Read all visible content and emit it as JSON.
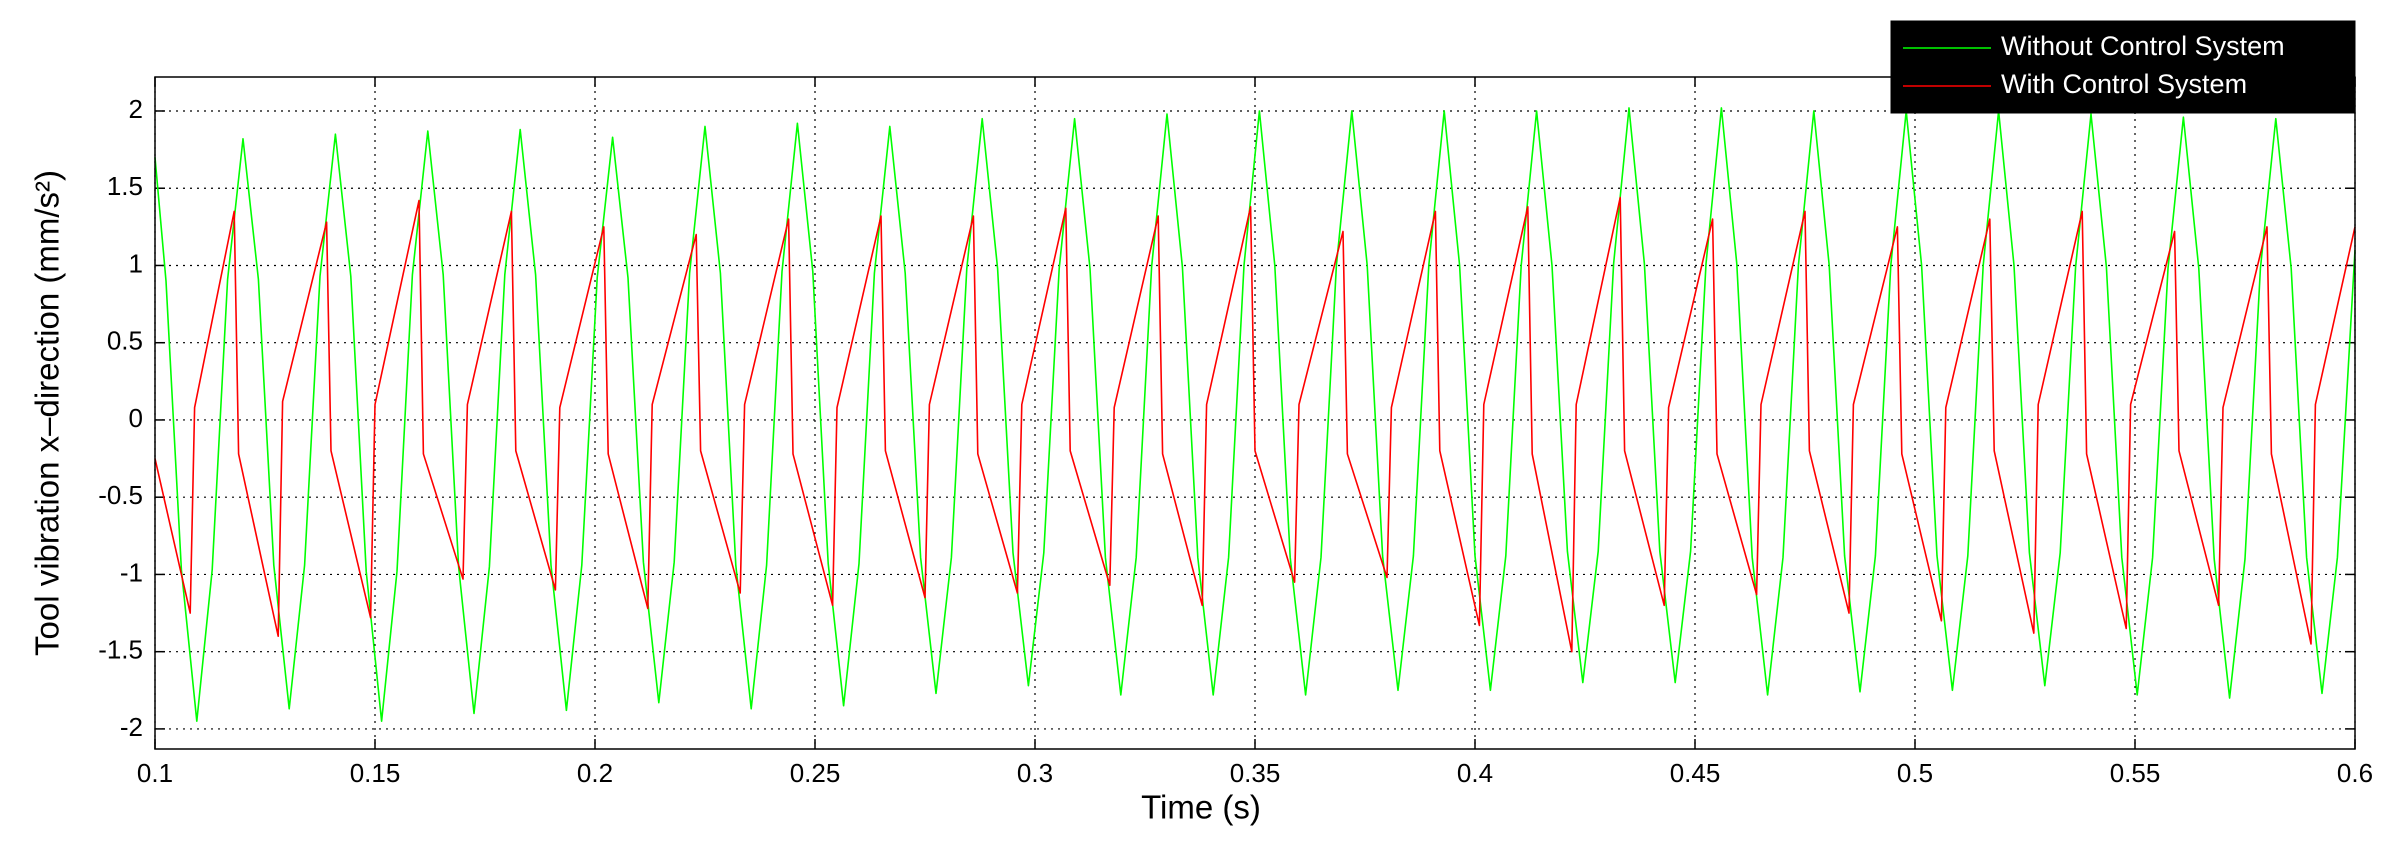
{
  "chart_data": {
    "type": "line",
    "xlabel": "Time (s)",
    "ylabel": "Tool vibration x–direction (mm/s²)",
    "xlim": [
      0.1,
      0.6
    ],
    "ylim": [
      -2.13,
      2.22
    ],
    "xticks": [
      0.1,
      0.15,
      0.2,
      0.25,
      0.3,
      0.35,
      0.4,
      0.45,
      0.5,
      0.55,
      0.6
    ],
    "yticks": [
      -2,
      -1.5,
      -1,
      -0.5,
      0,
      0.5,
      1,
      1.5,
      2
    ],
    "grid": true,
    "legend": "top-right",
    "series": [
      {
        "name": "Without Control System",
        "color": "#00ff00",
        "x": [
          0.1,
          0.1025,
          0.106,
          0.1095,
          0.113,
          0.1165,
          0.12,
          0.1235,
          0.127,
          0.1305,
          0.134,
          0.1375,
          0.141,
          0.1445,
          0.148,
          0.1515,
          0.155,
          0.1585,
          0.162,
          0.1655,
          0.169,
          0.1725,
          0.176,
          0.1795,
          0.183,
          0.1865,
          0.19,
          0.1935,
          0.197,
          0.2005,
          0.204,
          0.2075,
          0.211,
          0.2145,
          0.218,
          0.2215,
          0.225,
          0.2285,
          0.232,
          0.2355,
          0.239,
          0.2425,
          0.246,
          0.2495,
          0.253,
          0.2565,
          0.26,
          0.2635,
          0.267,
          0.2705,
          0.274,
          0.2775,
          0.281,
          0.2845,
          0.288,
          0.2915,
          0.295,
          0.2985,
          0.302,
          0.3055,
          0.309,
          0.3125,
          0.316,
          0.3195,
          0.323,
          0.3265,
          0.33,
          0.3335,
          0.337,
          0.3405,
          0.344,
          0.3475,
          0.351,
          0.3545,
          0.358,
          0.3615,
          0.365,
          0.3685,
          0.372,
          0.3755,
          0.379,
          0.3825,
          0.386,
          0.3895,
          0.393,
          0.3965,
          0.4,
          0.4035,
          0.407,
          0.4105,
          0.414,
          0.4175,
          0.421,
          0.4245,
          0.428,
          0.4315,
          0.435,
          0.4385,
          0.442,
          0.4455,
          0.449,
          0.4525,
          0.456,
          0.4595,
          0.463,
          0.4665,
          0.47,
          0.4735,
          0.477,
          0.4805,
          0.484,
          0.4875,
          0.491,
          0.4945,
          0.498,
          0.5015,
          0.505,
          0.5085,
          0.512,
          0.5155,
          0.519,
          0.5225,
          0.526,
          0.5295,
          0.533,
          0.5365,
          0.54,
          0.5435,
          0.547,
          0.5505,
          0.554,
          0.5575,
          0.561,
          0.5645,
          0.568,
          0.5715,
          0.575,
          0.5785,
          0.582,
          0.5855,
          0.589,
          0.5925,
          0.596,
          0.6
        ],
        "values": [
          1.7,
          0.9,
          -0.97,
          -1.95,
          -0.97,
          0.91,
          1.82,
          0.91,
          -0.94,
          -1.87,
          -0.94,
          0.93,
          1.85,
          0.93,
          -0.98,
          -1.95,
          -0.98,
          0.94,
          1.87,
          0.94,
          -0.95,
          -1.9,
          -0.95,
          0.94,
          1.88,
          0.94,
          -0.94,
          -1.88,
          -0.94,
          0.92,
          1.83,
          0.92,
          -0.92,
          -1.83,
          -0.92,
          0.95,
          1.9,
          0.95,
          -0.94,
          -1.87,
          -0.94,
          0.96,
          1.92,
          0.96,
          -0.93,
          -1.85,
          -0.93,
          0.95,
          1.9,
          0.95,
          -0.89,
          -1.77,
          -0.89,
          0.98,
          1.95,
          0.98,
          -0.86,
          -1.72,
          -0.86,
          0.98,
          1.95,
          0.98,
          -0.89,
          -1.78,
          -0.89,
          0.99,
          1.98,
          0.99,
          -0.89,
          -1.78,
          -0.89,
          1,
          2,
          1,
          -0.89,
          -1.78,
          -0.89,
          1,
          2,
          1,
          -0.88,
          -1.75,
          -0.88,
          1,
          2,
          1,
          -0.88,
          -1.75,
          -0.88,
          1,
          2,
          1,
          -0.85,
          -1.7,
          -0.85,
          1.01,
          2.02,
          1.01,
          -0.85,
          -1.7,
          -0.85,
          1.01,
          2.02,
          1.01,
          -0.89,
          -1.78,
          -0.89,
          1,
          2,
          1,
          -0.88,
          -1.76,
          -0.88,
          1,
          2,
          1,
          -0.88,
          -1.75,
          -0.88,
          1,
          2,
          1,
          -0.86,
          -1.72,
          -0.86,
          0.99,
          1.98,
          0.99,
          -0.89,
          -1.78,
          -0.89,
          0.98,
          1.96,
          0.98,
          -0.9,
          -1.8,
          -0.9,
          0.98,
          1.95,
          0.98,
          -0.89,
          -1.77,
          -0.89,
          1.1
        ]
      },
      {
        "name": "With Control System",
        "color": "#ff0000",
        "x": [
          0.1,
          0.108,
          0.109,
          0.118,
          0.119,
          0.128,
          0.129,
          0.139,
          0.14,
          0.149,
          0.15,
          0.16,
          0.161,
          0.17,
          0.171,
          0.181,
          0.182,
          0.191,
          0.192,
          0.202,
          0.203,
          0.212,
          0.213,
          0.223,
          0.224,
          0.233,
          0.234,
          0.244,
          0.245,
          0.254,
          0.255,
          0.265,
          0.266,
          0.275,
          0.276,
          0.286,
          0.287,
          0.296,
          0.297,
          0.307,
          0.308,
          0.317,
          0.318,
          0.328,
          0.329,
          0.338,
          0.339,
          0.349,
          0.35,
          0.359,
          0.36,
          0.37,
          0.371,
          0.38,
          0.381,
          0.391,
          0.392,
          0.401,
          0.402,
          0.412,
          0.413,
          0.422,
          0.423,
          0.433,
          0.434,
          0.443,
          0.444,
          0.454,
          0.455,
          0.464,
          0.465,
          0.475,
          0.476,
          0.485,
          0.486,
          0.496,
          0.497,
          0.506,
          0.507,
          0.517,
          0.518,
          0.527,
          0.528,
          0.538,
          0.539,
          0.548,
          0.549,
          0.559,
          0.56,
          0.569,
          0.57,
          0.58,
          0.581,
          0.59,
          0.591,
          0.6
        ],
        "values": [
          -0.25,
          -1.25,
          0.08,
          1.35,
          -0.22,
          -1.4,
          0.12,
          1.28,
          -0.2,
          -1.28,
          0.1,
          1.42,
          -0.22,
          -1.03,
          0.1,
          1.35,
          -0.2,
          -1.1,
          0.08,
          1.25,
          -0.22,
          -1.22,
          0.1,
          1.2,
          -0.2,
          -1.12,
          0.1,
          1.3,
          -0.22,
          -1.2,
          0.08,
          1.32,
          -0.2,
          -1.15,
          0.1,
          1.32,
          -0.22,
          -1.12,
          0.1,
          1.37,
          -0.2,
          -1.07,
          0.08,
          1.32,
          -0.22,
          -1.2,
          0.1,
          1.38,
          -0.2,
          -1.05,
          0.1,
          1.22,
          -0.22,
          -1.02,
          0.08,
          1.35,
          -0.2,
          -1.33,
          0.1,
          1.38,
          -0.22,
          -1.5,
          0.1,
          1.44,
          -0.2,
          -1.2,
          0.08,
          1.3,
          -0.22,
          -1.13,
          0.1,
          1.35,
          -0.2,
          -1.25,
          0.1,
          1.25,
          -0.22,
          -1.3,
          0.08,
          1.3,
          -0.2,
          -1.38,
          0.1,
          1.35,
          -0.22,
          -1.35,
          0.1,
          1.22,
          -0.2,
          -1.2,
          0.08,
          1.25,
          -0.22,
          -1.45,
          0.1,
          1.25
        ]
      }
    ]
  }
}
